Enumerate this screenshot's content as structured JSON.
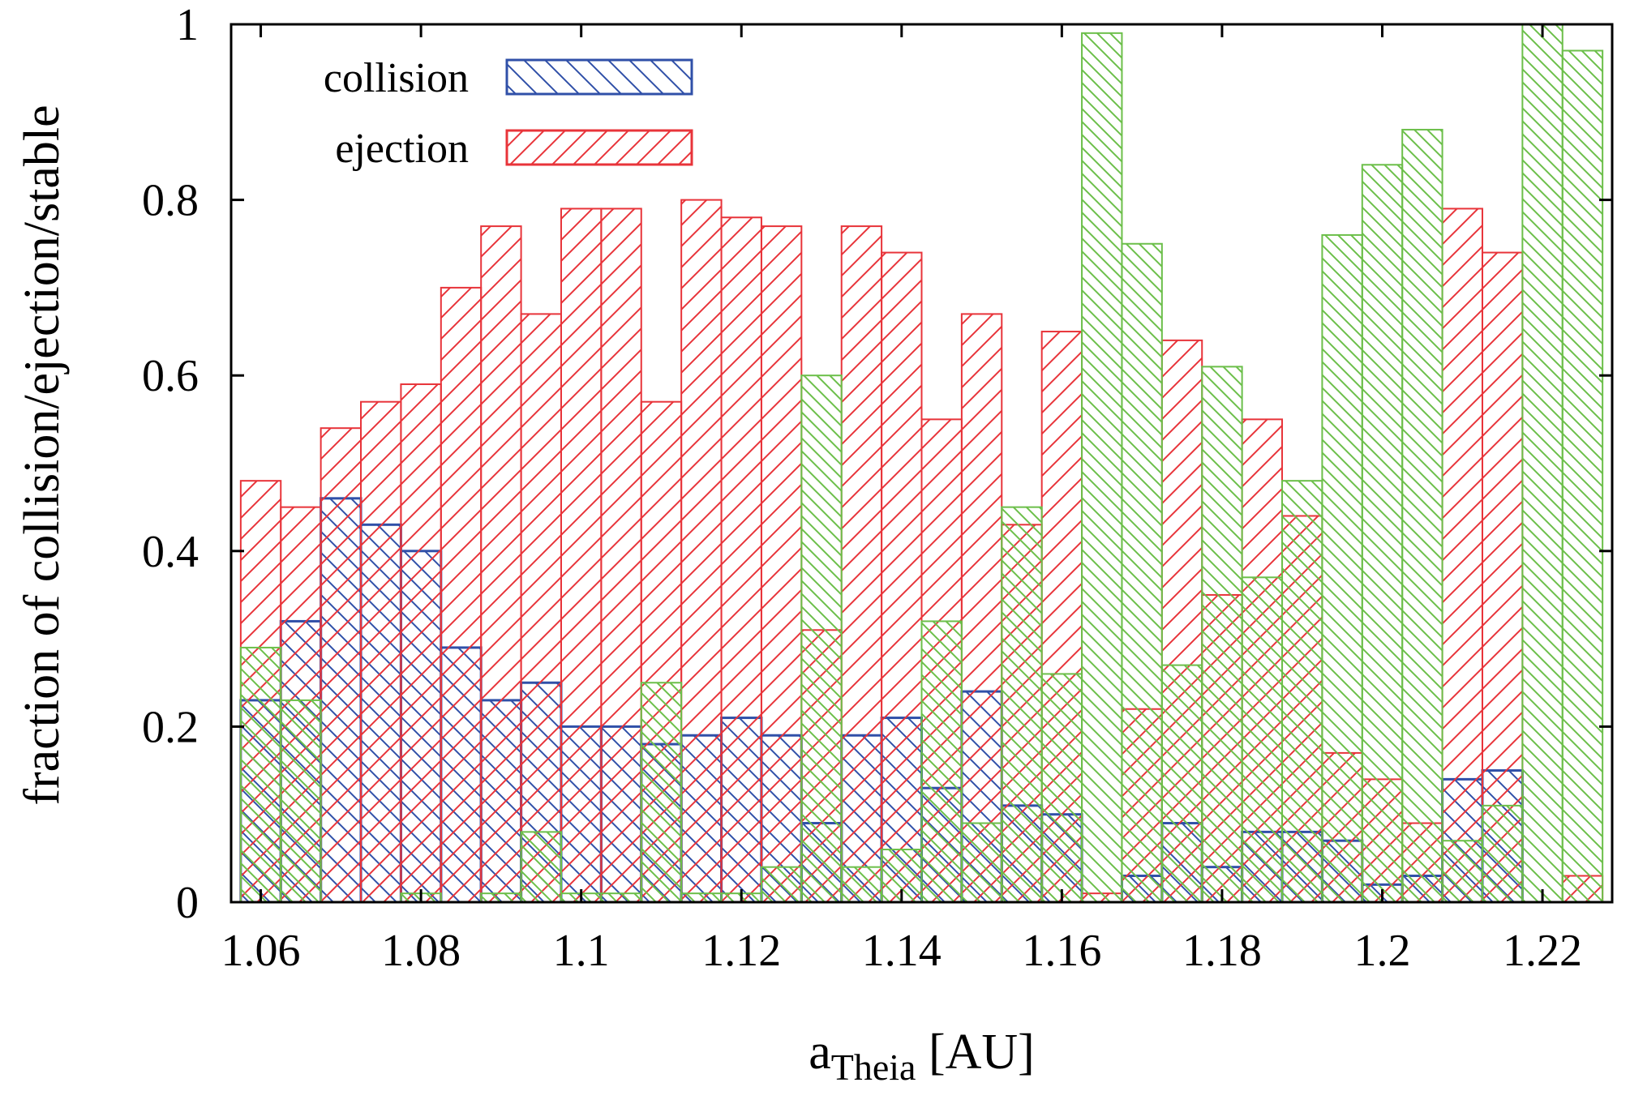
{
  "chart_data": {
    "type": "bar",
    "xlabel_main": "a",
    "xlabel_sub": "Theia",
    "xlabel_unit": " [AU]",
    "ylabel": "fraction of collision/ejection/stable",
    "xlim": [
      1.0563,
      1.2287
    ],
    "ylim": [
      0,
      1
    ],
    "xticks": [
      1.06,
      1.08,
      1.1,
      1.12,
      1.14,
      1.16,
      1.18,
      1.2,
      1.22
    ],
    "xtick_labels": [
      "1.06",
      "1.08",
      "1.1",
      "1.12",
      "1.14",
      "1.16",
      "1.18",
      "1.2",
      "1.22"
    ],
    "yticks": [
      0,
      0.2,
      0.4,
      0.6,
      0.8,
      1
    ],
    "ytick_labels": [
      "0",
      "0.2",
      "0.4",
      "0.6",
      "0.8",
      "1"
    ],
    "bin_width": 0.005,
    "x": [
      1.06,
      1.065,
      1.07,
      1.075,
      1.08,
      1.085,
      1.09,
      1.095,
      1.1,
      1.105,
      1.11,
      1.115,
      1.12,
      1.125,
      1.13,
      1.135,
      1.14,
      1.145,
      1.15,
      1.155,
      1.16,
      1.165,
      1.17,
      1.175,
      1.18,
      1.185,
      1.19,
      1.195,
      1.2,
      1.205,
      1.21,
      1.215,
      1.22,
      1.225
    ],
    "series": [
      {
        "name": "collision",
        "color": "#3050a8",
        "pattern": "backslash-hatch",
        "values": [
          0.23,
          0.32,
          0.46,
          0.43,
          0.4,
          0.29,
          0.23,
          0.25,
          0.2,
          0.2,
          0.18,
          0.19,
          0.21,
          0.19,
          0.09,
          0.19,
          0.21,
          0.13,
          0.24,
          0.11,
          0.1,
          0.0,
          0.03,
          0.09,
          0.04,
          0.08,
          0.08,
          0.07,
          0.02,
          0.03,
          0.14,
          0.15,
          0.0,
          0.0
        ]
      },
      {
        "name": "ejection",
        "color": "#e8343a",
        "pattern": "slash-hatch",
        "values": [
          0.48,
          0.45,
          0.54,
          0.57,
          0.59,
          0.7,
          0.77,
          0.67,
          0.79,
          0.79,
          0.57,
          0.8,
          0.78,
          0.77,
          0.31,
          0.77,
          0.74,
          0.55,
          0.67,
          0.43,
          0.65,
          0.01,
          0.22,
          0.64,
          0.35,
          0.55,
          0.44,
          0.17,
          0.14,
          0.09,
          0.79,
          0.74,
          0.0,
          0.03
        ]
      },
      {
        "name": "",
        "color": "#6cbf4a",
        "pattern": "backslash-hatch-dense",
        "values": [
          0.29,
          0.23,
          0.0,
          0.0,
          0.01,
          0.0,
          0.01,
          0.08,
          0.01,
          0.01,
          0.25,
          0.01,
          0.01,
          0.04,
          0.6,
          0.04,
          0.06,
          0.32,
          0.09,
          0.45,
          0.26,
          0.99,
          0.75,
          0.27,
          0.61,
          0.37,
          0.48,
          0.76,
          0.84,
          0.88,
          0.07,
          0.11,
          1.0,
          0.97
        ]
      }
    ],
    "legend": [
      {
        "label": "collision"
      },
      {
        "label": "ejection"
      }
    ],
    "legend_position": "top-left",
    "grid": false
  }
}
